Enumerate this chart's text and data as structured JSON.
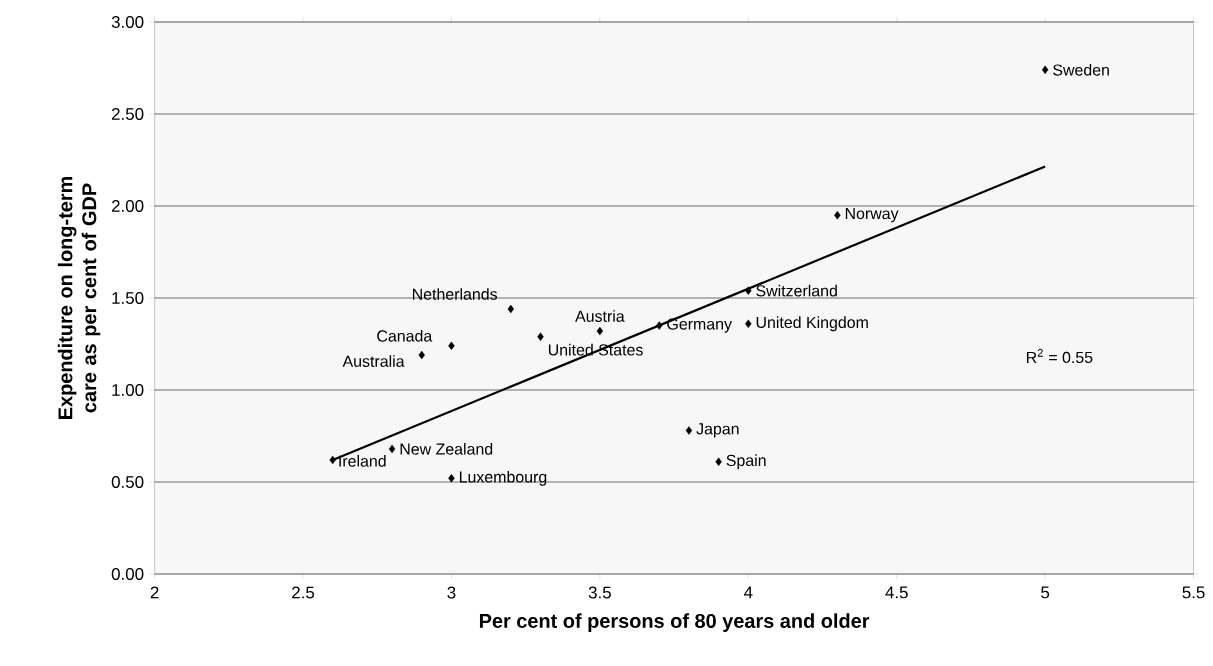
{
  "chart_data": {
    "type": "scatter",
    "xlabel": "Per cent of persons of 80 years and older",
    "ylabel": "Expenditure on long-term care as per cent of GDP",
    "x": [
      5.0,
      4.3,
      4.0,
      4.0,
      3.7,
      3.5,
      3.3,
      3.2,
      3.0,
      2.9,
      3.8,
      3.9,
      2.8,
      2.6,
      3.0
    ],
    "series": [
      {
        "color": "#000000",
        "marker": "diamond",
        "values": [
          2.74,
          1.95,
          1.54,
          1.36,
          1.35,
          1.32,
          1.29,
          1.44,
          1.24,
          1.19,
          0.78,
          0.61,
          0.68,
          0.62,
          0.52
        ]
      },
      {
        "type": "line",
        "color": "#000000",
        "marker": "none",
        "line_style": "solid",
        "x": [
          2.6,
          5.0
        ],
        "values": [
          0.62,
          2.215
        ]
      }
    ],
    "annotations": [
      {
        "text": "Sweden",
        "x": 5.0,
        "y": 2.74
      },
      {
        "text": "Norway",
        "x": 4.3,
        "y": 1.95
      },
      {
        "text": "Switzerland",
        "x": 4.0,
        "y": 1.54
      },
      {
        "text": "United Kingdom",
        "x": 4.0,
        "y": 1.36
      },
      {
        "text": "Germany",
        "x": 3.7,
        "y": 1.35
      },
      {
        "text": "Austria",
        "x": 3.5,
        "y": 1.32
      },
      {
        "text": "United States",
        "x": 3.3,
        "y": 1.29
      },
      {
        "text": "Netherlands",
        "x": 3.2,
        "y": 1.44
      },
      {
        "text": "Canada",
        "x": 3.0,
        "y": 1.24
      },
      {
        "text": "Australia",
        "x": 2.9,
        "y": 1.19
      },
      {
        "text": "Japan",
        "x": 3.8,
        "y": 0.78
      },
      {
        "text": "Spain",
        "x": 3.9,
        "y": 0.61
      },
      {
        "text": "New Zealand",
        "x": 2.8,
        "y": 0.68
      },
      {
        "text": "Ireland",
        "x": 2.6,
        "y": 0.62
      },
      {
        "text": "Luxembourg",
        "x": 3.0,
        "y": 0.52
      },
      "R$^{2}$ = 0.55"
    ],
    "xlim": [
      2,
      5.5
    ],
    "xticks": [
      2,
      2.5,
      3,
      3.5,
      4,
      4.5,
      5,
      5.5
    ],
    "ylim": [
      0,
      3
    ],
    "yticks": [
      {
        "value": 0,
        "label": "0.00"
      },
      {
        "value": 0.5,
        "label": "0.50"
      },
      {
        "value": 1,
        "label": "1.00"
      },
      {
        "value": 1.5,
        "label": "1.50"
      },
      {
        "value": 2,
        "label": "2.00"
      },
      {
        "value": 2.5,
        "label": "2.50"
      },
      {
        "value": 3,
        "label": "3.00"
      }
    ],
    "grid": "y"
  }
}
